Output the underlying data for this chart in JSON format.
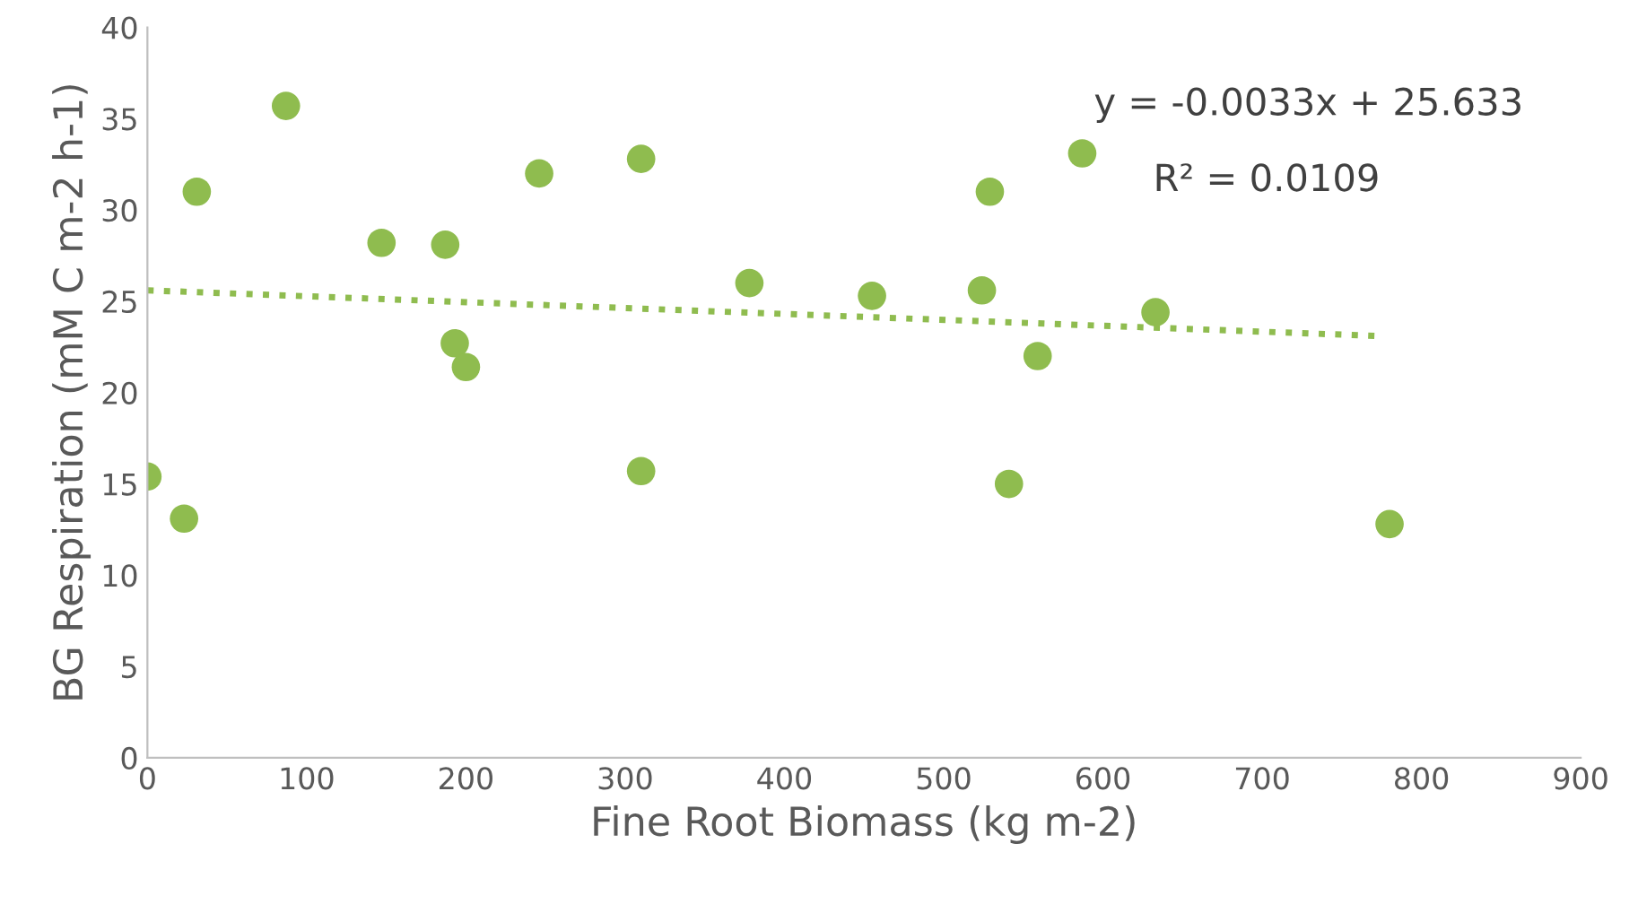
{
  "chart_data": {
    "type": "scatter",
    "xlabel": "Fine Root Biomass (kg m-2)",
    "ylabel": "BG Respiration (mM C m-2 h-1)",
    "xlim": [
      0,
      900
    ],
    "xticks": [
      0,
      100,
      200,
      300,
      400,
      500,
      600,
      700,
      800,
      900
    ],
    "ylim": [
      0,
      40
    ],
    "yticks": [
      0,
      5,
      10,
      15,
      20,
      25,
      30,
      35,
      40
    ],
    "grid": false,
    "legend": false,
    "marker": "circle",
    "series": [
      {
        "color": "#8fbc4f",
        "x": [
          0,
          23,
          31,
          87,
          147,
          187,
          193,
          200,
          246,
          310,
          310,
          378,
          455,
          524,
          529,
          541,
          559,
          587,
          633,
          780
        ],
        "values": [
          15.4,
          13.1,
          31.0,
          35.7,
          28.2,
          28.1,
          22.7,
          21.4,
          32.0,
          32.8,
          15.7,
          26.0,
          25.3,
          25.6,
          31.0,
          15.0,
          22.0,
          33.1,
          24.4,
          12.8
        ]
      },
      {
        "type": "line",
        "color": "#8fbc4f",
        "line_style": "dotted",
        "marker": "none",
        "x": [
          0,
          773
        ],
        "values": [
          25.6,
          23.1
        ]
      }
    ],
    "annotations": [
      "y = -0.0033x + 25.633",
      "R² = 0.0109"
    ]
  }
}
